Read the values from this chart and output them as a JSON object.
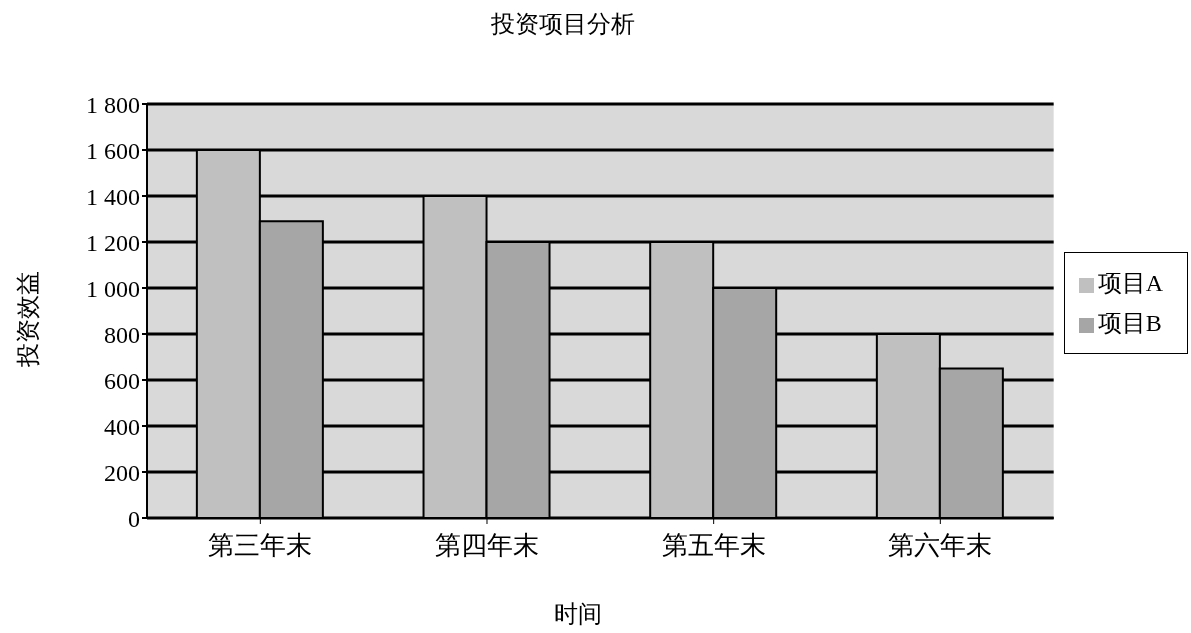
{
  "chart_data": {
    "type": "bar",
    "title": "投资项目分析",
    "xlabel": "时间",
    "ylabel": "投资效益",
    "categories": [
      "第三年末",
      "第四年末",
      "第五年末",
      "第六年末"
    ],
    "series": [
      {
        "name": "项目A",
        "color": "#c0c0c0",
        "values": [
          1600,
          1400,
          1200,
          800
        ]
      },
      {
        "name": "项目B",
        "color": "#a6a6a6",
        "values": [
          1290,
          1200,
          1000,
          650
        ]
      }
    ],
    "ylim": [
      0,
      1800
    ],
    "yticks": [
      0,
      200,
      400,
      600,
      800,
      {
        "value": 1000,
        "label": "1 000"
      },
      {
        "value": 1200,
        "label": "1 200"
      },
      {
        "value": 1400,
        "label": "1 400"
      },
      {
        "value": 1600,
        "label": "1 600"
      },
      {
        "value": 1800,
        "label": "1 800"
      }
    ],
    "grid": "y",
    "legend": "right"
  }
}
